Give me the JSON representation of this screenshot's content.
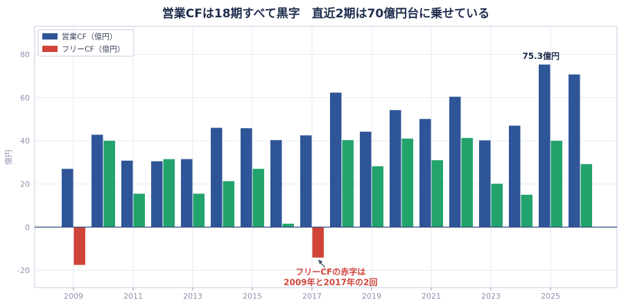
{
  "chart_data": {
    "type": "bar",
    "title": "営業CFは18期すべて黒字　直近2期は70億円台に乗せている",
    "ylabel": "億円",
    "xlabel": "",
    "ylim": [
      -28,
      93
    ],
    "yticks": [
      -20,
      0,
      20,
      40,
      60,
      80
    ],
    "x": [
      2009,
      2010,
      2011,
      2012,
      2013,
      2014,
      2015,
      2016,
      2017,
      2018,
      2019,
      2020,
      2021,
      2022,
      2023,
      2024,
      2025,
      2026
    ],
    "xticks": [
      "2009",
      "2011",
      "2013",
      "2015",
      "2017",
      "2019",
      "2021",
      "2023",
      "2025"
    ],
    "grid": true,
    "legend_position": "top-left",
    "series": [
      {
        "name": "営業CF（億円）",
        "color": "#2e5597",
        "values": [
          27.0,
          42.8,
          30.8,
          30.5,
          31.5,
          46.0,
          45.8,
          40.3,
          42.5,
          62.3,
          44.2,
          54.2,
          50.1,
          60.4,
          40.2,
          47.0,
          75.3,
          70.7
        ]
      },
      {
        "name": "フリーCF（億円）",
        "color": "#d0443a",
        "positive_color": "#22a36b",
        "values": [
          -17.5,
          40.0,
          15.5,
          31.5,
          15.5,
          21.3,
          27.0,
          1.6,
          -14.1,
          40.3,
          28.2,
          41.0,
          31.0,
          41.3,
          20.1,
          15.0,
          40.0,
          29.2
        ]
      }
    ],
    "annotations": [
      {
        "text": "75.3億円",
        "x": 2025,
        "y": 75.3
      },
      {
        "text_lines": [
          "フリーCFの赤字は",
          "2009年と2017年の2回"
        ],
        "x": 2017,
        "y": -14.1
      }
    ]
  },
  "colors": {
    "grid": "#e4e9f2",
    "frame": "#c5cde0",
    "zero_line": "#2f4a7a"
  }
}
